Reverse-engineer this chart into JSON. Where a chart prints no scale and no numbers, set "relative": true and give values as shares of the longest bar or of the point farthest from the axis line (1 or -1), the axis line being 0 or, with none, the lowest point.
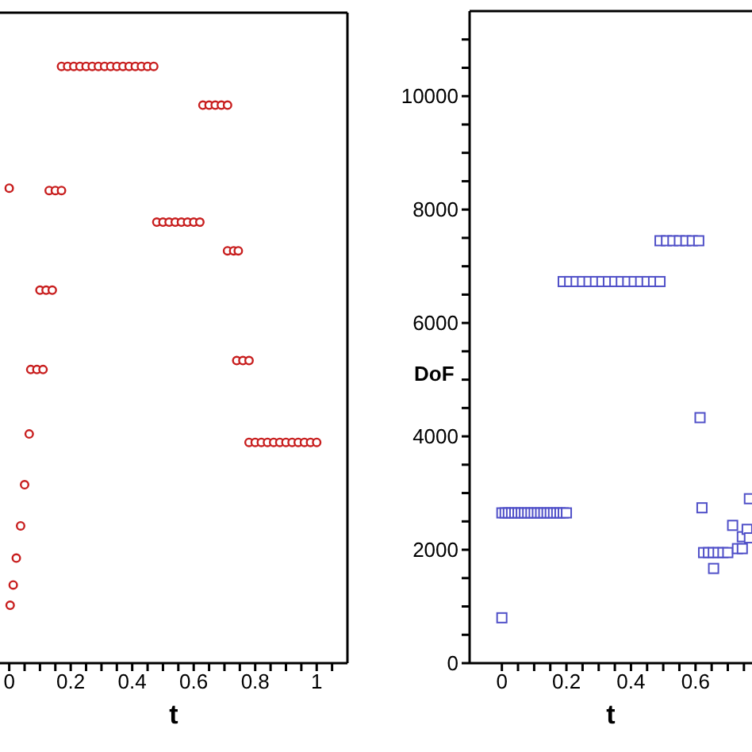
{
  "chart_data": [
    {
      "type": "scatter",
      "relative": true,
      "xlabel": "t",
      "xlim": [
        -0.03,
        1.1
      ],
      "xticks": [
        0,
        {
          "value": 0.05,
          "label": null
        },
        {
          "value": 0.1,
          "label": null
        },
        {
          "value": 0.15,
          "label": null
        },
        0.2,
        {
          "value": 0.25,
          "label": null
        },
        {
          "value": 0.3,
          "label": null
        },
        {
          "value": 0.35,
          "label": null
        },
        0.4,
        {
          "value": 0.45,
          "label": null
        },
        {
          "value": 0.5,
          "label": null
        },
        {
          "value": 0.55,
          "label": null
        },
        0.6,
        {
          "value": 0.65,
          "label": null
        },
        {
          "value": 0.7,
          "label": null
        },
        {
          "value": 0.75,
          "label": null
        },
        0.8,
        {
          "value": 0.85,
          "label": null
        },
        {
          "value": 0.9,
          "label": null
        },
        {
          "value": 0.95,
          "label": null
        },
        1,
        {
          "value": 1.05,
          "label": null
        }
      ],
      "marker": "circle",
      "series": [
        {
          "color": "#c81e1e",
          "x": [
            0,
            0.003,
            0.013,
            0.023,
            0.037,
            0.05,
            0.065,
            0.07,
            0.09,
            0.11,
            0.1,
            0.12,
            0.14,
            0.13,
            0.15,
            0.17,
            0.17,
            0.19,
            0.21,
            0.23,
            0.25,
            0.27,
            0.29,
            0.31,
            0.33,
            0.35,
            0.37,
            0.39,
            0.41,
            0.43,
            0.45,
            0.47,
            0.48,
            0.5,
            0.52,
            0.54,
            0.56,
            0.58,
            0.6,
            0.62,
            0.63,
            0.65,
            0.67,
            0.69,
            0.71,
            0.71,
            0.73,
            0.745,
            0.74,
            0.76,
            0.78,
            0.78,
            0.8,
            0.82,
            0.84,
            0.86,
            0.88,
            0.9,
            0.92,
            0.94,
            0.96,
            0.98,
            1.0
          ],
          "values": [
            0.796,
            0.097,
            0.131,
            0.176,
            0.23,
            0.299,
            0.384,
            0.492,
            0.492,
            0.492,
            0.625,
            0.625,
            0.625,
            0.792,
            0.792,
            0.792,
            1,
            1,
            1,
            1,
            1,
            1,
            1,
            1,
            1,
            1,
            1,
            1,
            1,
            1,
            1,
            1,
            0.739,
            0.739,
            0.739,
            0.739,
            0.739,
            0.739,
            0.739,
            0.739,
            0.935,
            0.935,
            0.935,
            0.935,
            0.935,
            0.691,
            0.691,
            0.691,
            0.507,
            0.507,
            0.507,
            0.37,
            0.37,
            0.37,
            0.37,
            0.37,
            0.37,
            0.37,
            0.37,
            0.37,
            0.37,
            0.37,
            0.37
          ]
        }
      ]
    },
    {
      "type": "scatter",
      "xlabel": "t",
      "ylabel": "DoF",
      "xlim": [
        -0.1,
        0.775
      ],
      "xticks": [
        0,
        {
          "value": 0.05,
          "label": null
        },
        {
          "value": 0.1,
          "label": null
        },
        {
          "value": 0.15,
          "label": null
        },
        0.2,
        {
          "value": 0.25,
          "label": null
        },
        {
          "value": 0.3,
          "label": null
        },
        {
          "value": 0.35,
          "label": null
        },
        0.4,
        {
          "value": 0.45,
          "label": null
        },
        {
          "value": 0.5,
          "label": null
        },
        {
          "value": 0.55,
          "label": null
        },
        0.6,
        {
          "value": 0.65,
          "label": null
        },
        {
          "value": 0.7,
          "label": null
        },
        {
          "value": 0.75,
          "label": null
        }
      ],
      "ylim": [
        0,
        11500
      ],
      "yticks": [
        0,
        {
          "value": 500,
          "label": null
        },
        {
          "value": 1000,
          "label": null
        },
        {
          "value": 1500,
          "label": null
        },
        2000,
        {
          "value": 2500,
          "label": null
        },
        {
          "value": 3000,
          "label": null
        },
        {
          "value": 3500,
          "label": null
        },
        4000,
        {
          "value": 4500,
          "label": null
        },
        {
          "value": 5000,
          "label": null
        },
        {
          "value": 5500,
          "label": null
        },
        6000,
        {
          "value": 6500,
          "label": null
        },
        {
          "value": 7000,
          "label": null
        },
        {
          "value": 7500,
          "label": null
        },
        8000,
        {
          "value": 8500,
          "label": null
        },
        {
          "value": 9000,
          "label": null
        },
        {
          "value": 9500,
          "label": null
        },
        10000,
        {
          "value": 10500,
          "label": null
        },
        {
          "value": 11000,
          "label": null
        }
      ],
      "marker": "square",
      "series": [
        {
          "color": "#5050c8",
          "x": [
            0,
            0,
            0.01,
            0.02,
            0.03,
            0.04,
            0.05,
            0.06,
            0.07,
            0.08,
            0.09,
            0.1,
            0.11,
            0.12,
            0.13,
            0.14,
            0.15,
            0.16,
            0.17,
            0.18,
            0.19,
            0.2,
            0.19,
            0.21,
            0.23,
            0.25,
            0.27,
            0.29,
            0.31,
            0.33,
            0.35,
            0.37,
            0.39,
            0.41,
            0.43,
            0.45,
            0.47,
            0.49,
            0.49,
            0.51,
            0.53,
            0.55,
            0.57,
            0.59,
            0.61,
            0.614,
            0.62,
            0.625,
            0.64,
            0.655,
            0.67,
            0.685,
            0.7,
            0.656,
            0.715,
            0.73,
            0.745,
            0.745,
            0.76,
            0.767,
            0.767
          ],
          "values": [
            800,
            2650,
            2650,
            2650,
            2650,
            2650,
            2650,
            2650,
            2650,
            2650,
            2650,
            2650,
            2650,
            2650,
            2650,
            2650,
            2650,
            2650,
            2650,
            2650,
            2650,
            2650,
            6730,
            6730,
            6730,
            6730,
            6730,
            6730,
            6730,
            6730,
            6730,
            6730,
            6730,
            6730,
            6730,
            6730,
            6730,
            6730,
            7450,
            7450,
            7450,
            7450,
            7450,
            7450,
            7450,
            4330,
            2740,
            1950,
            1950,
            1950,
            1950,
            1950,
            1950,
            1670,
            2430,
            2020,
            2020,
            2230,
            2360,
            2210,
            2900
          ]
        }
      ]
    }
  ]
}
